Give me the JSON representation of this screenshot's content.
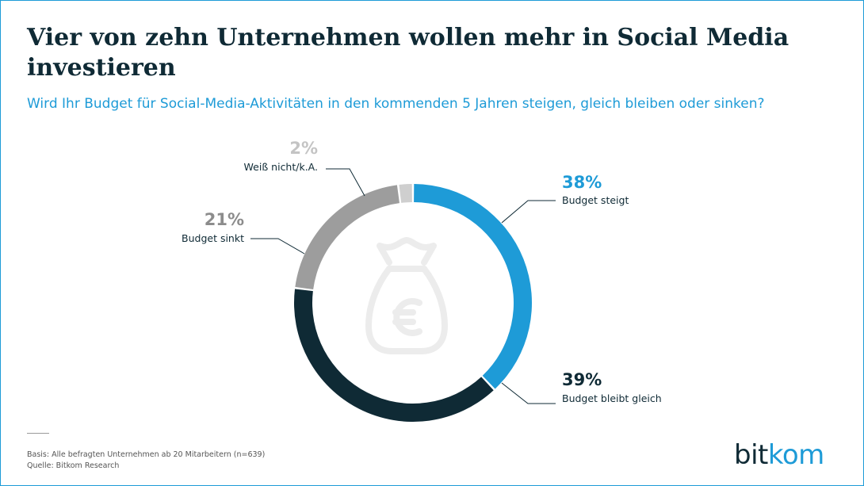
{
  "header": {
    "title": "Vier von zehn Unternehmen wollen mehr in Social Media investieren",
    "subtitle": "Wird Ihr Budget für Social-Media-Aktivitäten in den kommenden 5 Jahren steigen, gleich bleiben oder sinken?"
  },
  "chart_data": {
    "type": "pie",
    "variant": "donut",
    "center_icon": "money-bag-euro-icon",
    "slices": [
      {
        "label": "Budget steigt",
        "value": 38,
        "value_label": "38%",
        "color": "#1e9bd7",
        "value_color": "#1e9bd7"
      },
      {
        "label": "Budget bleibt gleich",
        "value": 39,
        "value_label": "39%",
        "color": "#0f2a35",
        "value_color": "#0f2a35"
      },
      {
        "label": "Budget sinkt",
        "value": 21,
        "value_label": "21%",
        "color": "#9d9d9d",
        "value_color": "#8c8c8c"
      },
      {
        "label": "Weiß nicht/k.A.",
        "value": 2,
        "value_label": "2%",
        "color": "#cfcfcf",
        "value_color": "#c4c4c4"
      }
    ]
  },
  "footer": {
    "basis": "Basis: Alle befragten Unternehmen ab 20 Mitarbeitern (n=639)",
    "source": "Quelle: Bitkom Research"
  },
  "logo": {
    "part1": "bit",
    "part2": "kom"
  }
}
